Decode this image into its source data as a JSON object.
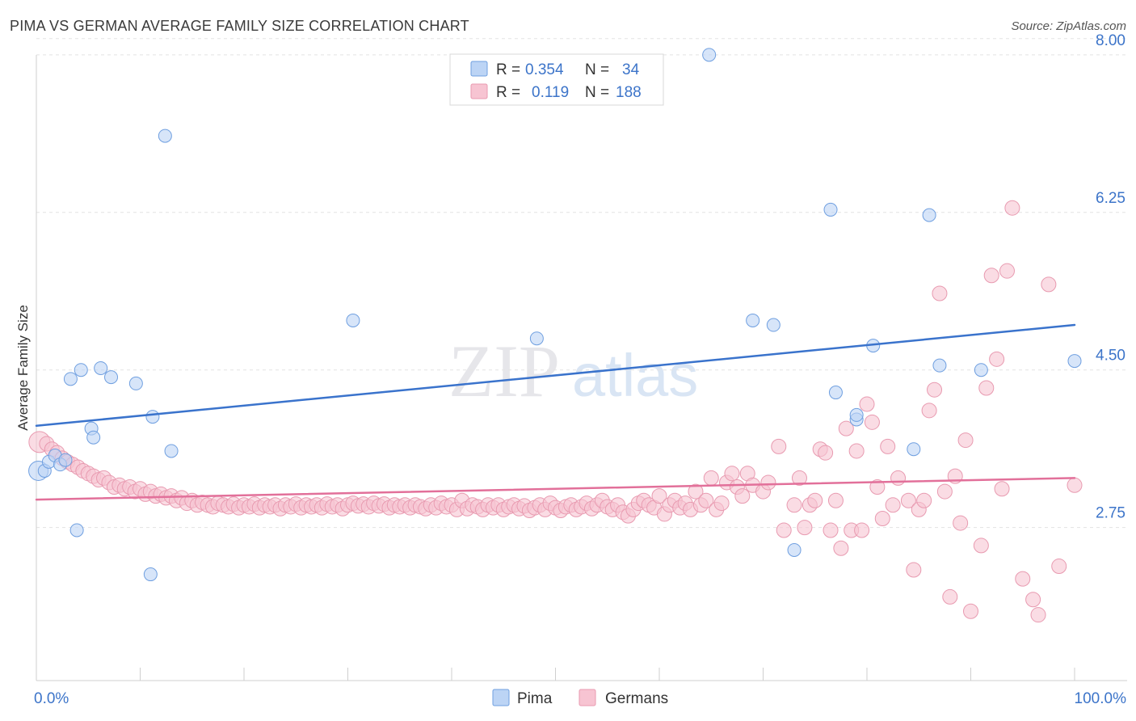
{
  "title": "PIMA VS GERMAN AVERAGE FAMILY SIZE CORRELATION CHART",
  "source": "Source: ZipAtlas.com",
  "watermark": {
    "zip": "ZIP",
    "atlas": "atlas"
  },
  "chart_data": {
    "type": "scatter",
    "xlabel": "",
    "ylabel": "Average Family Size",
    "xlim": [
      0,
      100
    ],
    "ylim": [
      1.05,
      8.25
    ],
    "x_tick_labels": [
      {
        "value": 0,
        "label": "0.0%"
      },
      {
        "value": 100,
        "label": "100.0%"
      }
    ],
    "y_ticks": [
      {
        "value": 2.75,
        "label": "2.75"
      },
      {
        "value": 4.5,
        "label": "4.50"
      },
      {
        "value": 6.25,
        "label": "6.25"
      },
      {
        "value": 8.0,
        "label": "8.00"
      }
    ],
    "grid": true,
    "legend_position": "top-center",
    "legend": [
      {
        "name": "Pima",
        "r_label": "R =",
        "r_value": "0.354",
        "n_label": "N =",
        "n_value": "34"
      },
      {
        "name": "Germans",
        "r_label": "R =",
        "r_value": "0.119",
        "n_label": "N =",
        "n_value": "188"
      }
    ],
    "series": [
      {
        "name": "Pima",
        "color": "#6f9fe0",
        "fill": "#bcd4f5",
        "trend": {
          "x": [
            0,
            100
          ],
          "y": [
            3.88,
            5.0
          ]
        },
        "points": [
          [
            0.2,
            3.38
          ],
          [
            0.8,
            3.38
          ],
          [
            1.2,
            3.48
          ],
          [
            1.8,
            3.55
          ],
          [
            2.3,
            3.45
          ],
          [
            2.8,
            3.5
          ],
          [
            3.3,
            4.4
          ],
          [
            4.3,
            4.5
          ],
          [
            5.3,
            3.85
          ],
          [
            5.5,
            3.75
          ],
          [
            6.2,
            4.52
          ],
          [
            7.2,
            4.42
          ],
          [
            9.6,
            4.35
          ],
          [
            11.2,
            3.98
          ],
          [
            12.4,
            7.1
          ],
          [
            13.0,
            3.6
          ],
          [
            3.9,
            2.72
          ],
          [
            11.0,
            2.23
          ],
          [
            30.5,
            5.05
          ],
          [
            48.2,
            4.85
          ],
          [
            64.8,
            8.0
          ],
          [
            69.0,
            5.05
          ],
          [
            71.0,
            5.0
          ],
          [
            76.5,
            6.28
          ],
          [
            77.0,
            4.25
          ],
          [
            79.0,
            3.95
          ],
          [
            79.0,
            4.0
          ],
          [
            80.6,
            4.77
          ],
          [
            84.5,
            3.62
          ],
          [
            86.0,
            6.22
          ],
          [
            87.0,
            4.55
          ],
          [
            91.0,
            4.5
          ],
          [
            100.0,
            4.6
          ],
          [
            73.0,
            2.5
          ]
        ]
      },
      {
        "name": "Germans",
        "color": "#e89ab0",
        "fill": "#f7c4d2",
        "trend": {
          "x": [
            0,
            100
          ],
          "y": [
            3.06,
            3.3
          ]
        },
        "points": [
          [
            0.3,
            3.7
          ],
          [
            1.0,
            3.68
          ],
          [
            1.5,
            3.62
          ],
          [
            2.0,
            3.58
          ],
          [
            2.5,
            3.52
          ],
          [
            3.0,
            3.48
          ],
          [
            3.5,
            3.45
          ],
          [
            4.0,
            3.42
          ],
          [
            4.5,
            3.38
          ],
          [
            5.0,
            3.35
          ],
          [
            5.5,
            3.32
          ],
          [
            6.0,
            3.28
          ],
          [
            6.5,
            3.3
          ],
          [
            7.0,
            3.25
          ],
          [
            7.5,
            3.2
          ],
          [
            8.0,
            3.22
          ],
          [
            8.5,
            3.18
          ],
          [
            9.0,
            3.2
          ],
          [
            9.5,
            3.15
          ],
          [
            10.0,
            3.18
          ],
          [
            10.5,
            3.12
          ],
          [
            11.0,
            3.15
          ],
          [
            11.5,
            3.1
          ],
          [
            12.0,
            3.12
          ],
          [
            12.5,
            3.08
          ],
          [
            13.0,
            3.1
          ],
          [
            13.5,
            3.05
          ],
          [
            14.0,
            3.08
          ],
          [
            14.5,
            3.02
          ],
          [
            15.0,
            3.05
          ],
          [
            15.5,
            3.0
          ],
          [
            16.0,
            3.03
          ],
          [
            16.5,
            3.0
          ],
          [
            17.0,
            2.98
          ],
          [
            17.5,
            3.02
          ],
          [
            18.0,
            3.0
          ],
          [
            18.5,
            2.98
          ],
          [
            19.0,
            3.01
          ],
          [
            19.5,
            2.97
          ],
          [
            20.0,
            3.0
          ],
          [
            20.5,
            2.98
          ],
          [
            21.0,
            3.01
          ],
          [
            21.5,
            2.97
          ],
          [
            22.0,
            3.0
          ],
          [
            22.5,
            2.98
          ],
          [
            23.0,
            3.0
          ],
          [
            23.5,
            2.96
          ],
          [
            24.0,
            3.0
          ],
          [
            24.5,
            2.98
          ],
          [
            25.0,
            3.01
          ],
          [
            25.5,
            2.97
          ],
          [
            26.0,
            3.0
          ],
          [
            26.5,
            2.98
          ],
          [
            27.0,
            3.0
          ],
          [
            27.5,
            2.97
          ],
          [
            28.0,
            3.01
          ],
          [
            28.5,
            2.98
          ],
          [
            29.0,
            3.0
          ],
          [
            29.5,
            2.96
          ],
          [
            30.0,
            3.0
          ],
          [
            30.5,
            3.02
          ],
          [
            31.0,
            2.99
          ],
          [
            31.5,
            3.01
          ],
          [
            32.0,
            2.98
          ],
          [
            32.5,
            3.02
          ],
          [
            33.0,
            2.99
          ],
          [
            33.5,
            3.01
          ],
          [
            34.0,
            2.97
          ],
          [
            34.5,
            3.0
          ],
          [
            35.0,
            2.98
          ],
          [
            35.5,
            3.0
          ],
          [
            36.0,
            2.97
          ],
          [
            36.5,
            3.0
          ],
          [
            37.0,
            2.98
          ],
          [
            37.5,
            2.96
          ],
          [
            38.0,
            3.0
          ],
          [
            38.5,
            2.97
          ],
          [
            39.0,
            3.02
          ],
          [
            39.5,
            2.98
          ],
          [
            40.0,
            3.0
          ],
          [
            40.5,
            2.95
          ],
          [
            41.0,
            3.05
          ],
          [
            41.5,
            2.96
          ],
          [
            42.0,
            3.0
          ],
          [
            42.5,
            2.98
          ],
          [
            43.0,
            2.95
          ],
          [
            43.5,
            3.0
          ],
          [
            44.0,
            2.97
          ],
          [
            44.5,
            3.0
          ],
          [
            45.0,
            2.95
          ],
          [
            45.5,
            2.98
          ],
          [
            46.0,
            3.0
          ],
          [
            46.5,
            2.96
          ],
          [
            47.0,
            2.99
          ],
          [
            47.5,
            2.94
          ],
          [
            48.0,
            2.97
          ],
          [
            48.5,
            3.0
          ],
          [
            49.0,
            2.95
          ],
          [
            49.5,
            3.02
          ],
          [
            50.0,
            2.97
          ],
          [
            50.5,
            2.94
          ],
          [
            51.0,
            2.98
          ],
          [
            51.5,
            3.0
          ],
          [
            52.0,
            2.95
          ],
          [
            52.5,
            2.98
          ],
          [
            53.0,
            3.02
          ],
          [
            53.5,
            2.96
          ],
          [
            54.0,
            3.0
          ],
          [
            54.5,
            3.05
          ],
          [
            55.0,
            2.98
          ],
          [
            55.5,
            2.95
          ],
          [
            56.0,
            3.0
          ],
          [
            56.5,
            2.92
          ],
          [
            57.0,
            2.88
          ],
          [
            57.5,
            2.95
          ],
          [
            58.0,
            3.02
          ],
          [
            58.5,
            3.05
          ],
          [
            59.0,
            3.0
          ],
          [
            59.5,
            2.97
          ],
          [
            60.0,
            3.1
          ],
          [
            60.5,
            2.9
          ],
          [
            61.0,
            3.0
          ],
          [
            61.5,
            3.05
          ],
          [
            62.0,
            2.97
          ],
          [
            62.5,
            3.02
          ],
          [
            63.0,
            2.95
          ],
          [
            63.5,
            3.15
          ],
          [
            64.0,
            3.0
          ],
          [
            64.5,
            3.05
          ],
          [
            65.0,
            3.3
          ],
          [
            65.5,
            2.95
          ],
          [
            66.0,
            3.02
          ],
          [
            66.5,
            3.25
          ],
          [
            67.0,
            3.35
          ],
          [
            67.5,
            3.2
          ],
          [
            68.0,
            3.1
          ],
          [
            68.5,
            3.35
          ],
          [
            69.0,
            3.22
          ],
          [
            70.0,
            3.15
          ],
          [
            70.5,
            3.25
          ],
          [
            71.5,
            3.65
          ],
          [
            72.0,
            2.72
          ],
          [
            73.0,
            3.0
          ],
          [
            73.5,
            3.3
          ],
          [
            74.0,
            2.75
          ],
          [
            74.5,
            3.0
          ],
          [
            75.0,
            3.05
          ],
          [
            75.5,
            3.62
          ],
          [
            76.0,
            3.58
          ],
          [
            76.5,
            2.72
          ],
          [
            77.0,
            3.05
          ],
          [
            77.5,
            2.52
          ],
          [
            78.0,
            3.85
          ],
          [
            78.5,
            2.72
          ],
          [
            79.0,
            3.6
          ],
          [
            79.5,
            2.72
          ],
          [
            80.0,
            4.12
          ],
          [
            80.5,
            3.92
          ],
          [
            81.0,
            3.2
          ],
          [
            81.5,
            2.85
          ],
          [
            82.0,
            3.65
          ],
          [
            82.5,
            3.0
          ],
          [
            83.0,
            3.3
          ],
          [
            84.0,
            3.05
          ],
          [
            84.5,
            2.28
          ],
          [
            85.0,
            2.95
          ],
          [
            85.5,
            3.05
          ],
          [
            86.0,
            4.05
          ],
          [
            86.5,
            4.28
          ],
          [
            87.0,
            5.35
          ],
          [
            87.5,
            3.15
          ],
          [
            88.0,
            1.98
          ],
          [
            88.5,
            3.32
          ],
          [
            89.0,
            2.8
          ],
          [
            89.5,
            3.72
          ],
          [
            90.0,
            1.82
          ],
          [
            91.0,
            2.55
          ],
          [
            91.5,
            4.3
          ],
          [
            92.0,
            5.55
          ],
          [
            92.5,
            4.62
          ],
          [
            93.0,
            3.18
          ],
          [
            93.5,
            5.6
          ],
          [
            94.0,
            6.3
          ],
          [
            95.0,
            2.18
          ],
          [
            96.0,
            1.95
          ],
          [
            96.5,
            1.78
          ],
          [
            97.5,
            5.45
          ],
          [
            98.5,
            2.32
          ],
          [
            100.0,
            3.22
          ]
        ]
      }
    ]
  }
}
